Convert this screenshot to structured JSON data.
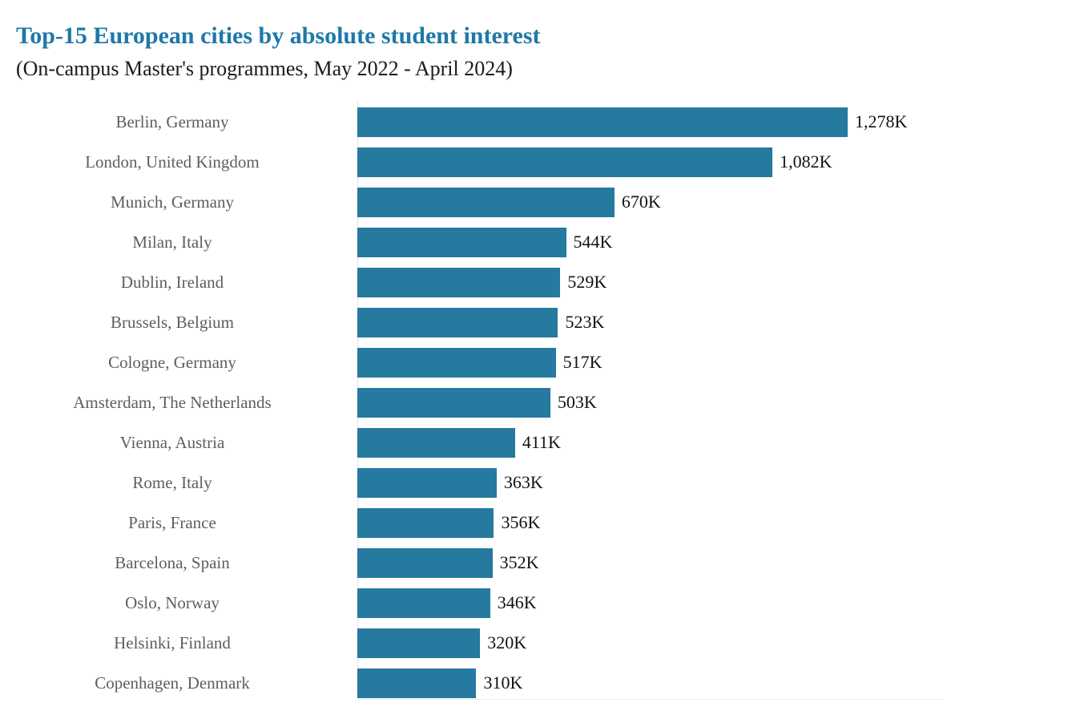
{
  "header": {
    "title": "Top-15 European cities by absolute student interest",
    "subtitle": "(On-campus Master's programmes, May 2022 - April 2024)"
  },
  "colors": {
    "title_text": "#1E78A8",
    "bar": "#26799F",
    "category_label": "#5E5E5E",
    "value_label": "#121212",
    "axis_line": "#E3E3E3"
  },
  "chart_data": {
    "type": "bar",
    "orientation": "horizontal",
    "title": "Top-15 European cities by absolute student interest",
    "subtitle": "(On-campus Master's programmes, May 2022 - April 2024)",
    "xlabel": "",
    "ylabel": "",
    "unit": "thousands of students (K)",
    "legend": "none",
    "grid": "off",
    "xlim_k_approx": [
      0,
      1530
    ],
    "categories": [
      "Berlin, Germany",
      "London, United Kingdom",
      "Munich, Germany",
      "Milan, Italy",
      "Dublin, Ireland",
      "Brussels, Belgium",
      "Cologne, Germany",
      "Amsterdam, The Netherlands",
      "Vienna, Austria",
      "Rome, Italy",
      "Paris, France",
      "Barcelona, Spain",
      "Oslo, Norway",
      "Helsinki, Finland",
      "Copenhagen, Denmark"
    ],
    "values_thousands": [
      1278,
      1082,
      670,
      544,
      529,
      523,
      517,
      503,
      411,
      363,
      356,
      352,
      346,
      320,
      310
    ],
    "value_labels": [
      "1,278K",
      "1,082K",
      "670K",
      "544K",
      "529K",
      "523K",
      "517K",
      "503K",
      "411K",
      "363K",
      "356K",
      "352K",
      "346K",
      "320K",
      "310K"
    ]
  }
}
